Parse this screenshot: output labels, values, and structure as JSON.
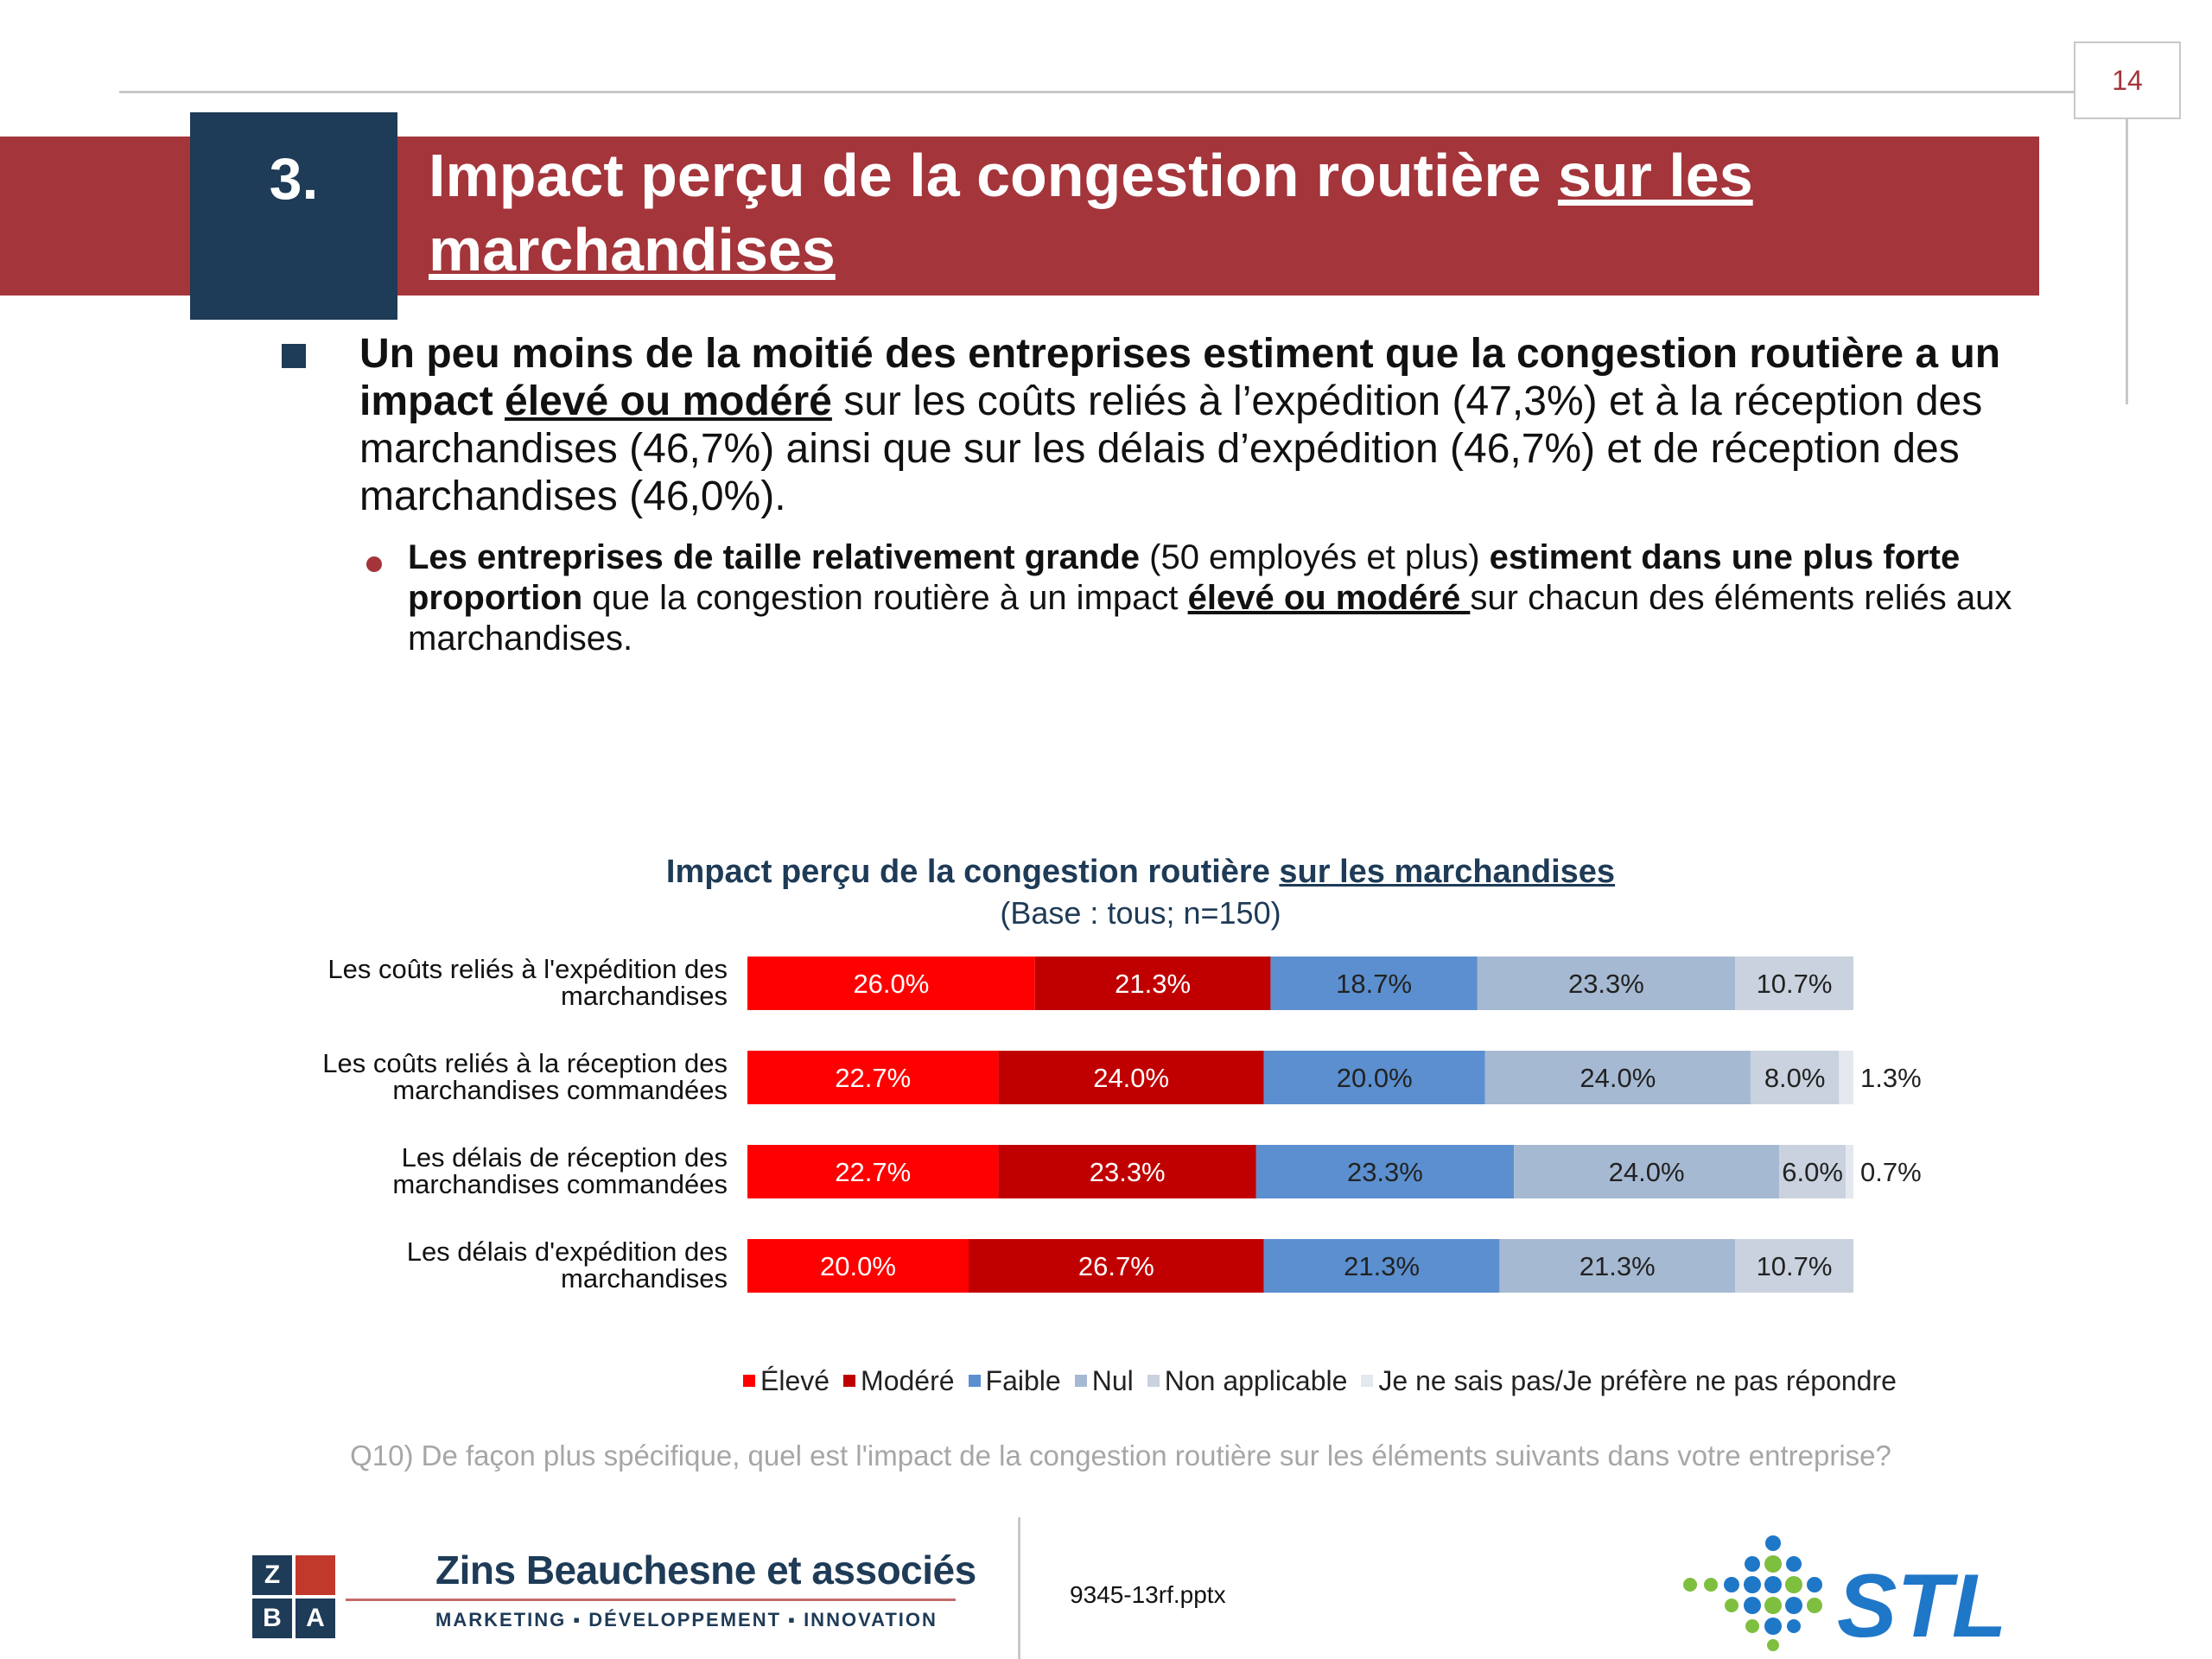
{
  "page_number": "14",
  "section": {
    "number": "3.",
    "title_plain": "Impact perçu de la congestion routière ",
    "title_underlined_1": "sur les",
    "title_underlined_2": "marchandises"
  },
  "bullet_main": {
    "bold_1": "Un peu moins de la moitié des entreprises estiment que la congestion routière a un impact ",
    "bold_underlined": "élevé ou modéré",
    "rest": " sur les coûts reliés à l’expédition (47,3%) et à la réception des marchandises (46,7%) ainsi que sur les délais d’expédition (46,7%) et de réception des marchandises (46,0%)."
  },
  "bullet_sub": {
    "bold_1": "Les entreprises de taille relativement grande",
    "plain_1": " (50 employés et plus) ",
    "bold_2": "estiment dans une plus forte proportion",
    "plain_2": " que la congestion routière à un impact ",
    "bold_underlined": "élevé ou modéré ",
    "plain_3": "sur chacun des éléments reliés aux marchandises."
  },
  "chart_data": {
    "type": "bar",
    "orientation": "horizontal",
    "stacked": true,
    "title_plain": "Impact perçu de la congestion routière ",
    "title_underlined": "sur les marchandises",
    "subtitle": "(Base : tous; n=150)",
    "categories": [
      [
        "Les coûts reliés à l'expédition des",
        "marchandises"
      ],
      [
        "Les coûts reliés à la réception des",
        "marchandises commandées"
      ],
      [
        "Les délais de réception des",
        "marchandises commandées"
      ],
      [
        "Les délais d'expédition des",
        "marchandises"
      ]
    ],
    "series": [
      {
        "name": "Élevé",
        "color": "#ff0000",
        "values": [
          26.0,
          22.7,
          22.7,
          20.0
        ]
      },
      {
        "name": "Modéré",
        "color": "#c00000",
        "values": [
          21.3,
          24.0,
          23.3,
          26.7
        ]
      },
      {
        "name": "Faible",
        "color": "#5b8fcf",
        "values": [
          18.7,
          20.0,
          23.3,
          21.3
        ]
      },
      {
        "name": "Nul",
        "color": "#a6b9d2",
        "values": [
          23.3,
          24.0,
          24.0,
          21.3
        ]
      },
      {
        "name": "Non applicable",
        "color": "#c9d2de",
        "values": [
          10.7,
          8.0,
          6.0,
          10.7
        ]
      },
      {
        "name": "Je ne sais pas/Je préfère ne pas répondre",
        "color": "#e4e8ef",
        "values": [
          0,
          1.3,
          0.7,
          0
        ]
      }
    ],
    "data_labels": [
      [
        "26.0%",
        "21.3%",
        "18.7%",
        "23.3%",
        "10.7%",
        ""
      ],
      [
        "22.7%",
        "24.0%",
        "20.0%",
        "24.0%",
        "8.0%",
        "1.3%"
      ],
      [
        "22.7%",
        "23.3%",
        "23.3%",
        "24.0%",
        "6.0%",
        "0.7%"
      ],
      [
        "20.0%",
        "26.7%",
        "21.3%",
        "21.3%",
        "10.7%",
        ""
      ]
    ],
    "xlim": [
      0,
      100
    ],
    "grid": false,
    "legend_position": "bottom"
  },
  "question": "Q10) De façon plus spécifique, quel est l'impact de la congestion routière sur les éléments suivants dans votre entreprise?",
  "footer": {
    "company": "Zins Beauchesne et associés",
    "tagline": "MARKETING ▪ DÉVELOPPEMENT ▪ INNOVATION",
    "logo_letters": [
      "Z",
      "B",
      "A"
    ],
    "filename": "9345-13rf.pptx",
    "partner_logo_text": "STL"
  },
  "colors": {
    "brand_red": "#a4353b",
    "brand_navy": "#1e3b57",
    "stl_blue": "#1f77c8",
    "stl_green": "#7fbf3f"
  }
}
